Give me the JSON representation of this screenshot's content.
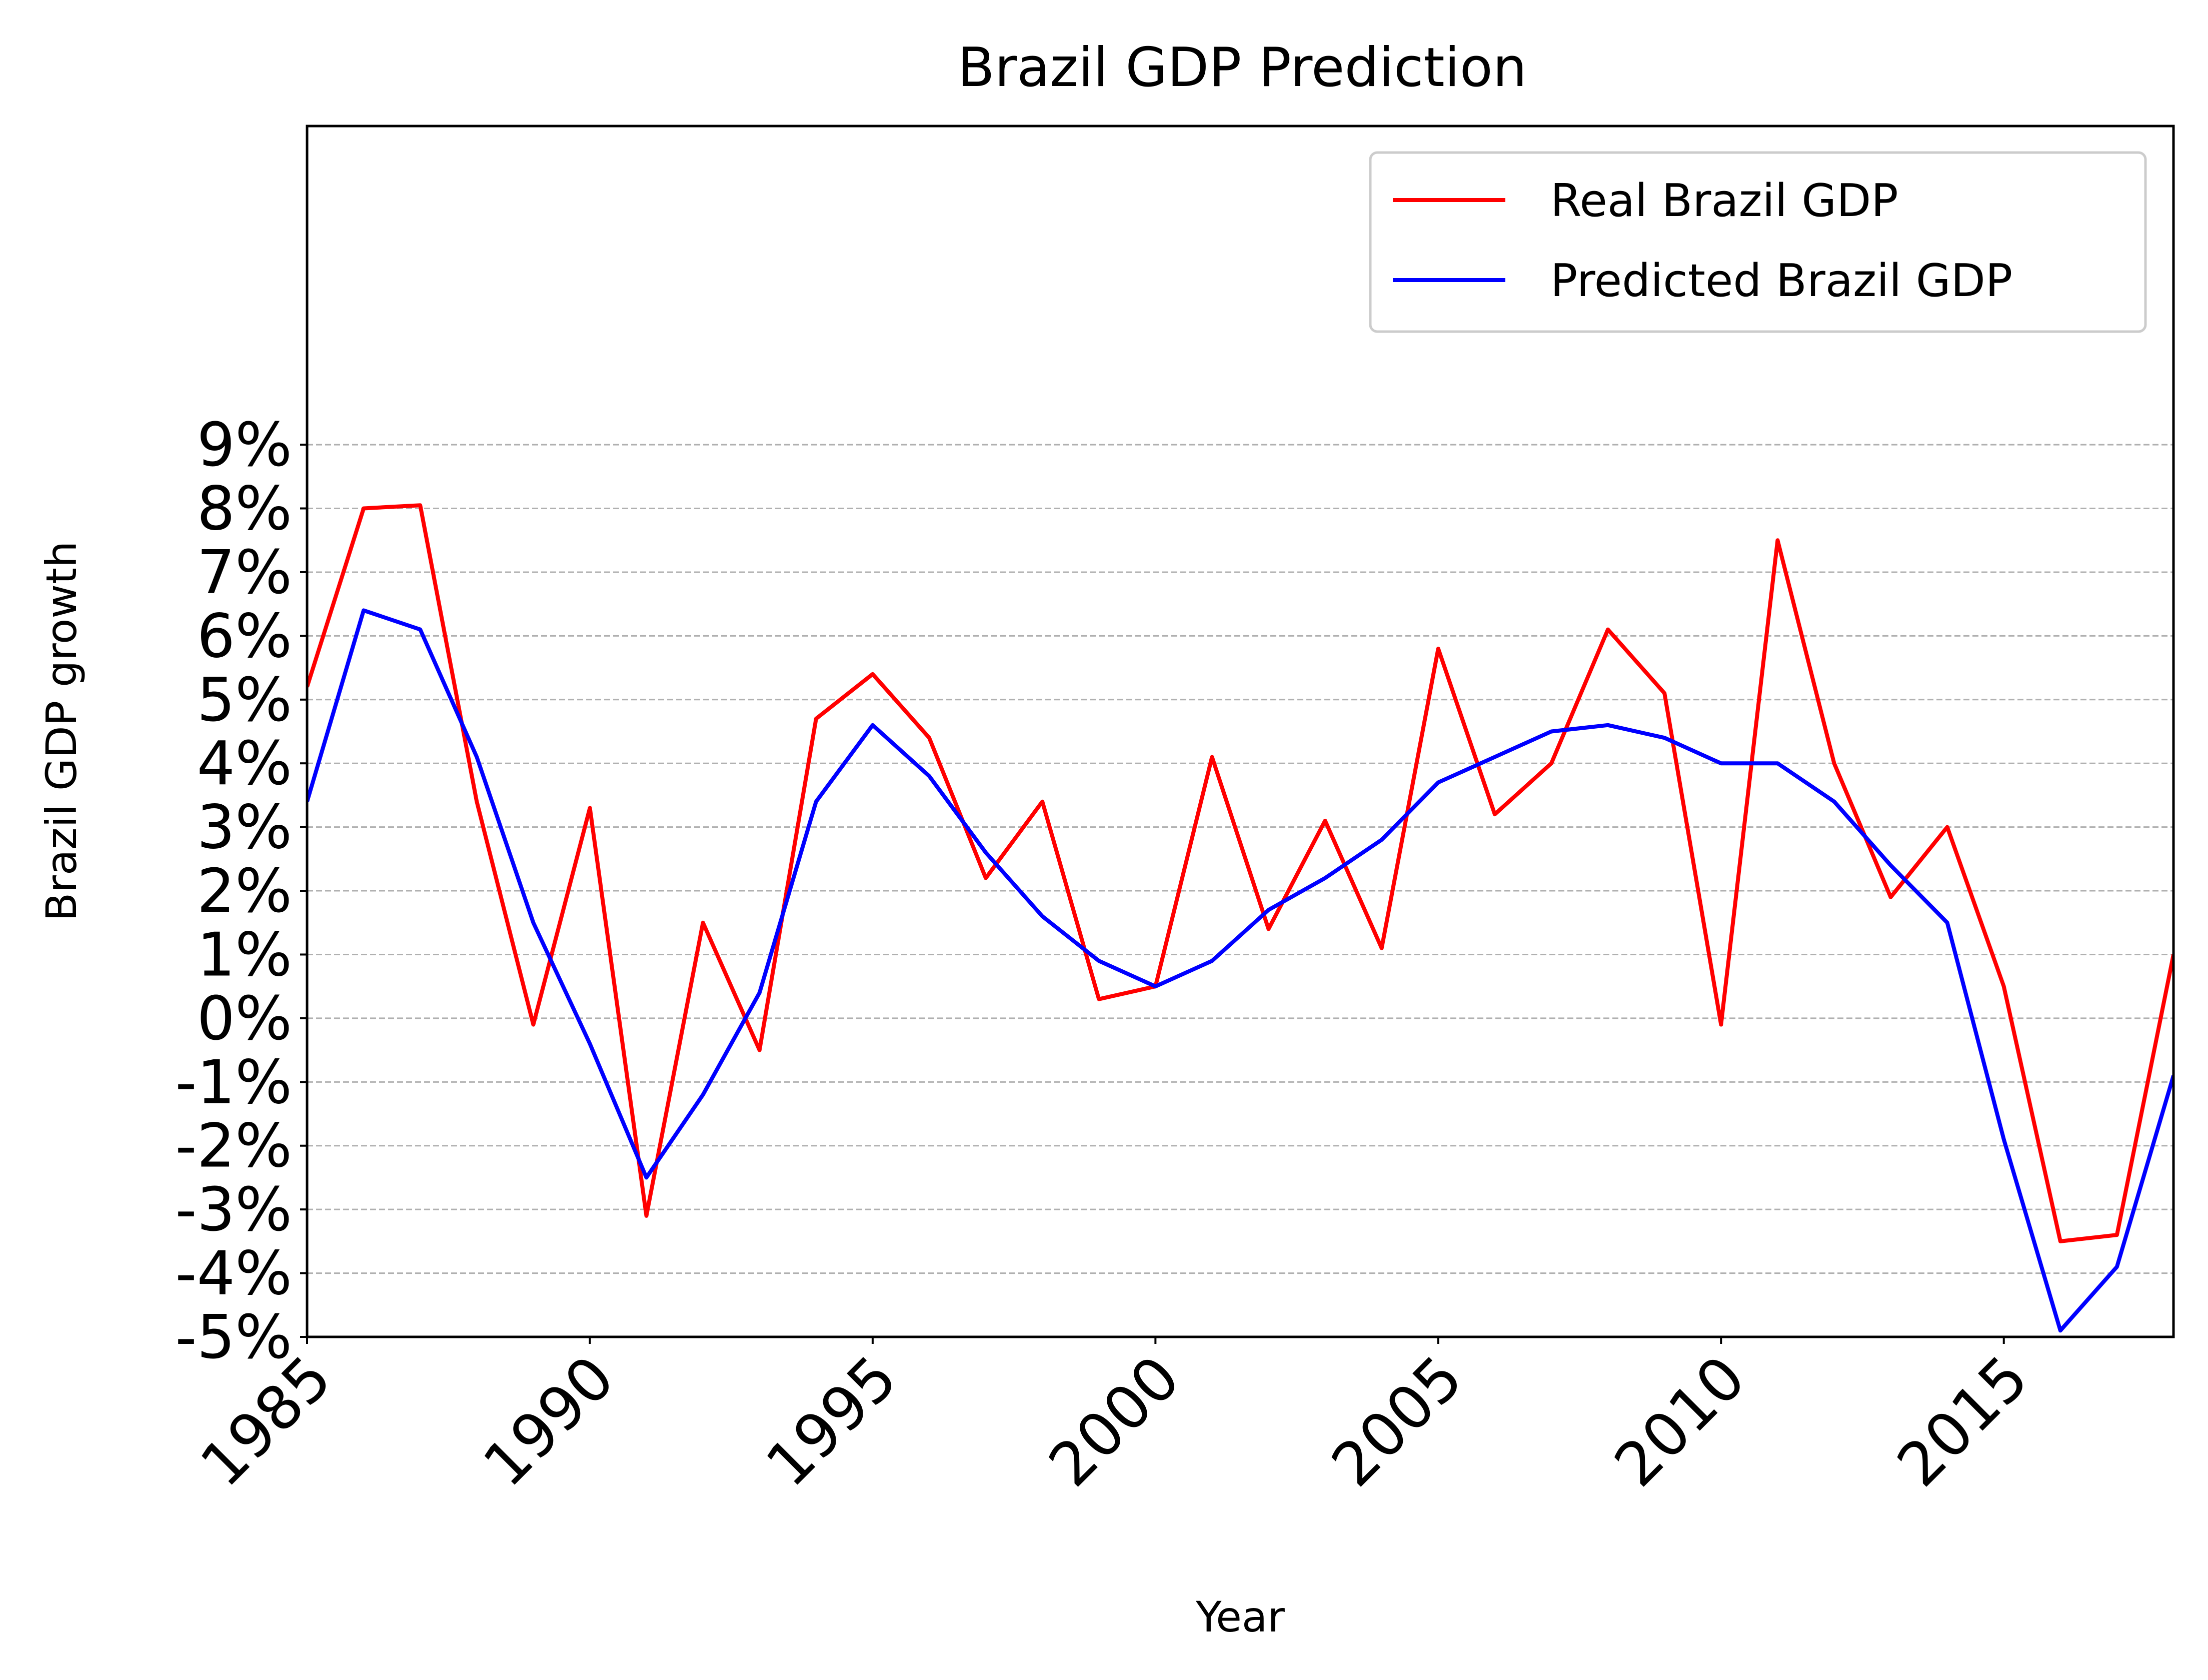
{
  "chart_data": {
    "type": "line",
    "title": "Brazil GDP Prediction",
    "xlabel": "Year",
    "ylabel": "Brazil GDP growth",
    "xlim": [
      1985,
      2018
    ],
    "ylim": [
      -5,
      14
    ],
    "x": [
      1985,
      1986,
      1987,
      1988,
      1989,
      1990,
      1991,
      1992,
      1993,
      1994,
      1995,
      1996,
      1997,
      1998,
      1999,
      2000,
      2001,
      2002,
      2003,
      2004,
      2005,
      2006,
      2007,
      2008,
      2009,
      2010,
      2011,
      2012,
      2013,
      2014,
      2015,
      2016,
      2017,
      2018
    ],
    "series": [
      {
        "name": "Real Brazil GDP",
        "color": "#ff0000",
        "values": [
          5.2,
          8.0,
          8.05,
          3.4,
          -0.1,
          3.3,
          -3.1,
          1.5,
          -0.5,
          4.7,
          5.4,
          4.4,
          2.2,
          3.4,
          0.3,
          0.5,
          4.1,
          1.4,
          3.1,
          1.1,
          5.8,
          3.2,
          4.0,
          6.1,
          5.1,
          -0.1,
          7.5,
          4.0,
          1.9,
          3.0,
          0.5,
          -3.5,
          -3.4,
          1.0
        ]
      },
      {
        "name": "Predicted Brazil GDP",
        "color": "#0000ff",
        "values": [
          3.4,
          6.4,
          6.1,
          4.1,
          1.5,
          -0.4,
          -2.5,
          -1.2,
          0.4,
          3.4,
          4.6,
          3.8,
          2.6,
          1.6,
          0.9,
          0.5,
          0.9,
          1.7,
          2.2,
          2.8,
          3.7,
          4.1,
          4.5,
          4.6,
          4.4,
          4.0,
          4.0,
          3.4,
          2.4,
          1.5,
          -1.9,
          -4.9,
          -3.9,
          -0.9
        ]
      }
    ],
    "yticks": [
      -5,
      -4,
      -3,
      -2,
      -1,
      0,
      1,
      2,
      3,
      4,
      5,
      6,
      7,
      8,
      9
    ],
    "ytick_labels": [
      "-5%",
      "-4%",
      "-3%",
      "-2%",
      "-1%",
      "0%",
      "1%",
      "2%",
      "3%",
      "4%",
      "5%",
      "6%",
      "7%",
      "8%",
      "9%"
    ],
    "xticks": [
      1985,
      1990,
      1995,
      2000,
      2005,
      2010,
      2015
    ],
    "xtick_labels": [
      "1985",
      "1990",
      "1995",
      "2000",
      "2005",
      "2010",
      "2015"
    ],
    "grid": "horizontal-dashed",
    "legend_position": "top-right"
  }
}
